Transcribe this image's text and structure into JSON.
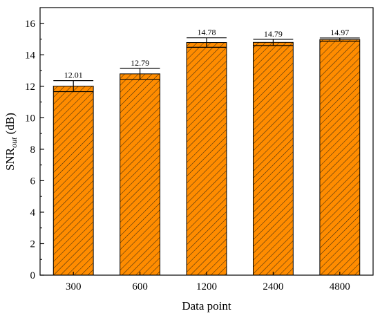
{
  "chart_data": {
    "type": "bar",
    "categories": [
      "300",
      "600",
      "1200",
      "2400",
      "4800"
    ],
    "values": [
      12.01,
      12.79,
      14.78,
      14.79,
      14.97
    ],
    "value_labels": [
      "12.01",
      "12.79",
      "14.78",
      "14.79",
      "14.97"
    ],
    "errors": [
      0.35,
      0.35,
      0.3,
      0.2,
      0.1
    ],
    "xlabel": "Data point",
    "ylabel": {
      "main": "SNR",
      "sub": "out",
      "unit": " (dB)"
    },
    "ylim": [
      0,
      17
    ],
    "yticks": [
      "0",
      "2",
      "4",
      "6",
      "8",
      "10",
      "12",
      "14",
      "16"
    ],
    "bar_color": "#ff8c00",
    "hatch_color": "#3a2a10",
    "grid": false
  }
}
